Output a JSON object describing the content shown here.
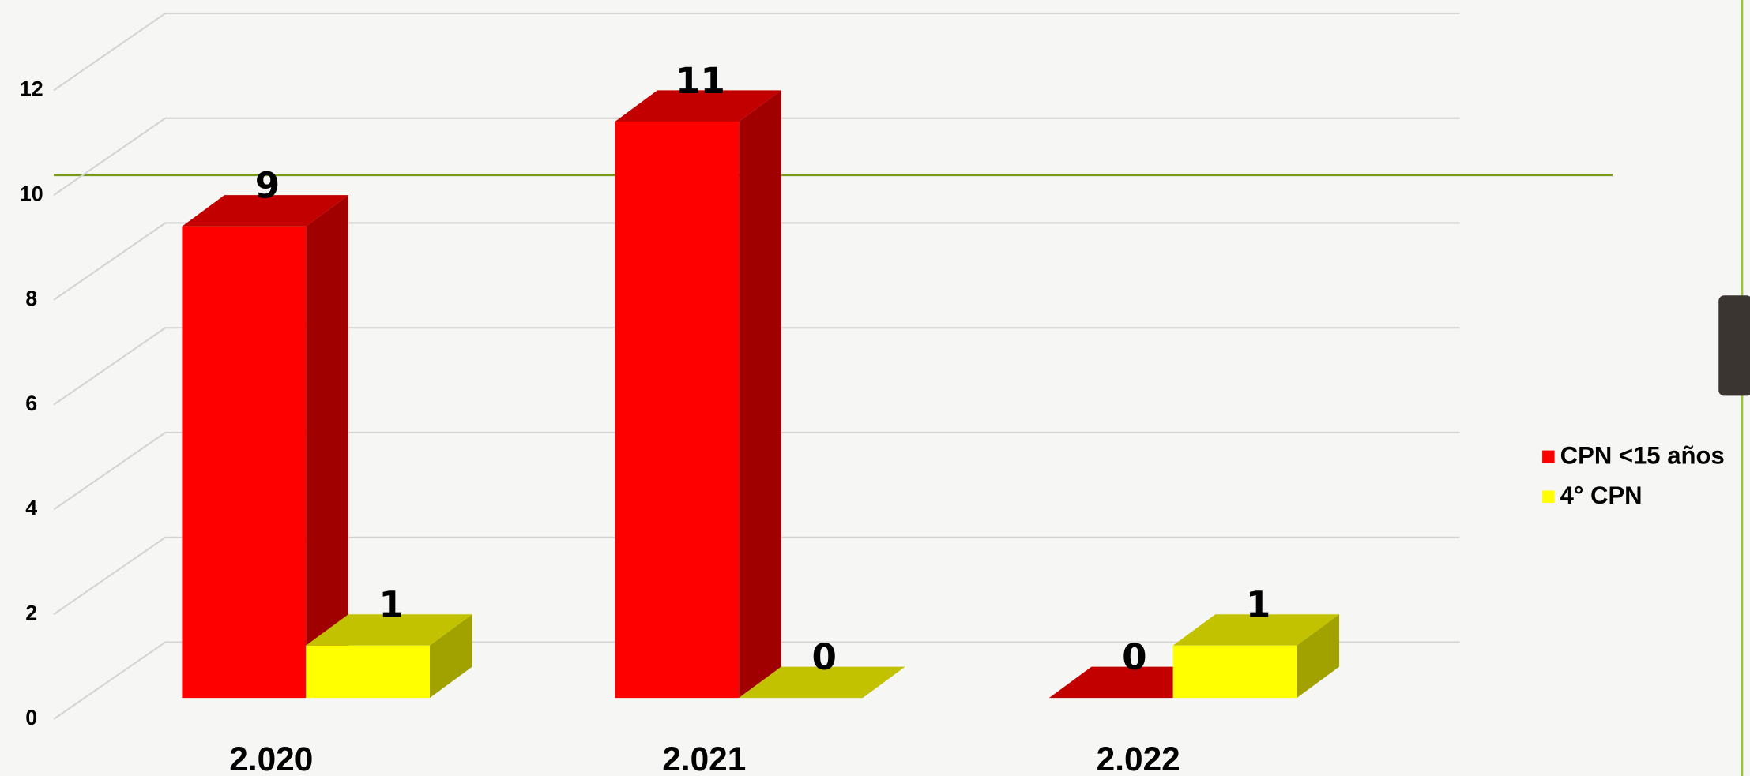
{
  "chart_data": {
    "type": "bar3d",
    "categories": [
      "2.020",
      "2.021",
      "2.022"
    ],
    "series": [
      {
        "name": "CPN <15 años",
        "color": "#ff0000",
        "values": [
          9,
          11,
          0
        ]
      },
      {
        "name": "4° CPN",
        "color": "#ffff00",
        "values": [
          1,
          0,
          1
        ]
      }
    ],
    "ylim": [
      0,
      12
    ],
    "yticks": [
      0,
      2,
      4,
      6,
      8,
      10,
      12
    ],
    "grid": true,
    "legend": "right"
  }
}
